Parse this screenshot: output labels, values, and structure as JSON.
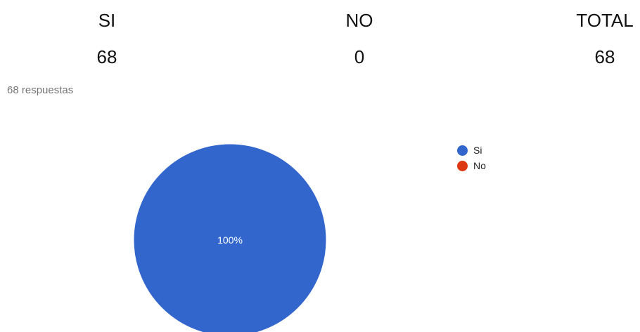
{
  "summary_table": {
    "headers": [
      "SI",
      "NO",
      "TOTAL"
    ],
    "values": [
      "68",
      "0",
      "68"
    ]
  },
  "responses_label": "68 respuestas",
  "colors": {
    "si": "#3366cc",
    "no": "#dc3912"
  },
  "chart_data": {
    "type": "pie",
    "categories": [
      "Si",
      "No"
    ],
    "values": [
      68,
      0
    ],
    "slice_labels": [
      "100%",
      ""
    ],
    "legend_position": "right"
  }
}
